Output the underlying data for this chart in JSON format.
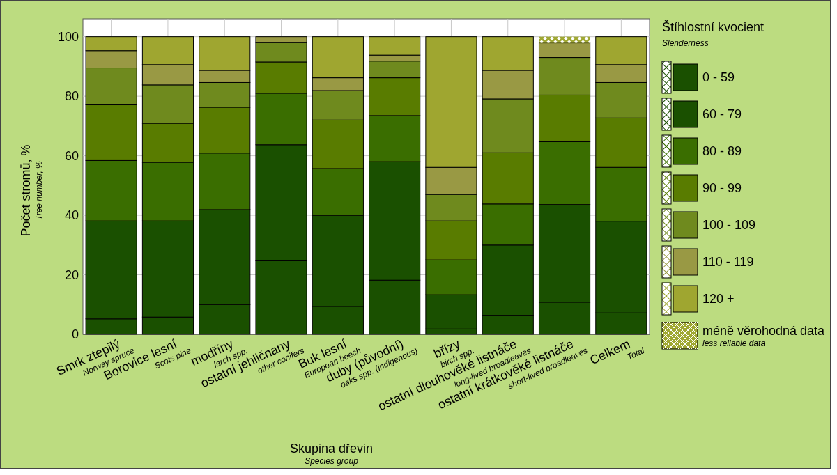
{
  "chart_data": {
    "type": "bar",
    "stacked": true,
    "xlabel": "Skupina dřevin\nSpecies group",
    "ylabel": "Počet stromů, %\nTree number, %",
    "legend_title": "Štíhlostní kvocient\nSlenderness",
    "categories": [
      "Smrk ztepilý\nNorway spruce",
      "Borovice lesní\nScots pine",
      "modříny\nlarch spp.",
      "ostatní jehličnany\nother conifers",
      "Buk lesní\nEuropean beech",
      "duby (původní)\noaks spp. (indigenous)",
      "břízy\nbirch spp.",
      "ostatní dlouhověké listnáče\nlong-lived broadleaves",
      "ostatní krátkověké listnáče\nshort-lived broadleaves",
      "Celkem\nTotal"
    ],
    "series": [
      {
        "name": "0 - 59",
        "color": "#1a5000",
        "values": [
          5.2,
          5.8,
          10.0,
          24.7,
          9.4,
          18.2,
          1.8,
          6.4,
          10.8,
          7.2
        ]
      },
      {
        "name": "60 - 79",
        "color": "#1a5000",
        "values": [
          32.9,
          32.3,
          31.9,
          39.0,
          30.6,
          39.8,
          11.5,
          23.6,
          32.8,
          30.8
        ]
      },
      {
        "name": "80 - 89",
        "color": "#3a6e00",
        "values": [
          20.3,
          19.7,
          19.0,
          17.3,
          15.7,
          15.5,
          11.7,
          13.8,
          21.1,
          18.1
        ]
      },
      {
        "name": "90 - 99",
        "color": "#597c00",
        "values": [
          18.7,
          13.1,
          15.4,
          10.5,
          16.3,
          12.7,
          13.1,
          17.2,
          15.7,
          16.6
        ]
      },
      {
        "name": "100 - 109",
        "color": "#6f8a1e",
        "values": [
          12.4,
          12.9,
          8.3,
          6.5,
          9.9,
          5.6,
          8.9,
          18.1,
          12.6,
          11.9
        ]
      },
      {
        "name": "110 - 119",
        "color": "#999944",
        "values": [
          5.8,
          6.8,
          4.1,
          2.0,
          4.3,
          2.0,
          9.1,
          9.6,
          4.9,
          6.0
        ]
      },
      {
        "name": "120 +",
        "color": "#9fa630",
        "values": [
          4.7,
          9.4,
          11.3,
          0,
          13.8,
          6.2,
          43.9,
          11.3,
          0,
          9.4
        ]
      },
      {
        "name": "méně věrohodná data\nless reliable data",
        "color": "#a0a832",
        "values": [
          null,
          null,
          null,
          null,
          null,
          null,
          null,
          null,
          2.1,
          null
        ]
      }
    ],
    "ylim": [
      0,
      106
    ],
    "yticks": [
      0,
      20,
      40,
      60,
      80,
      100
    ],
    "grid": true,
    "legend": "right"
  }
}
